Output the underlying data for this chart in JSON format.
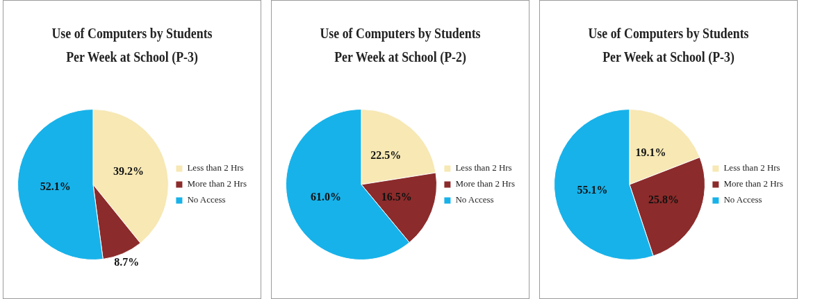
{
  "chart_data": [
    {
      "type": "pie",
      "title": "Use of Computers by Students Per Week at School (P-3)",
      "categories": [
        "Less than 2 Hrs",
        "More than 2 Hrs",
        "No Access"
      ],
      "values": [
        39.2,
        8.7,
        52.1
      ],
      "value_labels": [
        "39.2%",
        "8.7%",
        "52.1%"
      ],
      "colors": [
        "#f7e8b4",
        "#8c2b2b",
        "#17b2ea"
      ],
      "legend": "right"
    },
    {
      "type": "pie",
      "title": "Use of Computers by Students Per Week at School (P-2)",
      "categories": [
        "Less than 2 Hrs",
        "More than 2 Hrs",
        "No Access"
      ],
      "values": [
        22.5,
        16.5,
        61.0
      ],
      "value_labels": [
        "22.5%",
        "16.5%",
        "61.0%"
      ],
      "colors": [
        "#f7e8b4",
        "#8c2b2b",
        "#17b2ea"
      ],
      "legend": "right"
    },
    {
      "type": "pie",
      "title": "Use of Computers by Students Per Week at School (P-3)",
      "categories": [
        "Less than 2 Hrs",
        "More than 2 Hrs",
        "No Access"
      ],
      "values": [
        19.1,
        25.8,
        55.1
      ],
      "value_labels": [
        "19.1%",
        "25.8%",
        "55.1%"
      ],
      "colors": [
        "#f7e8b4",
        "#8c2b2b",
        "#17b2ea"
      ],
      "legend": "right"
    }
  ]
}
